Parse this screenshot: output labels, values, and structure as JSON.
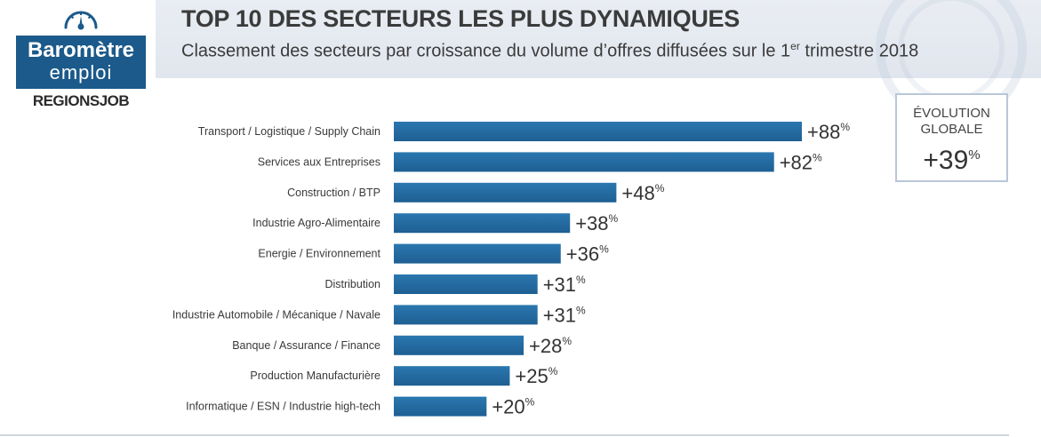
{
  "logo": {
    "line1": "Baromètre",
    "line2": "emploi",
    "brand": "REGIONSJOB"
  },
  "header": {
    "title": "TOP 10 DES SECTEURS LES PLUS DYNAMIQUES",
    "subtitle_pre": "Classement des secteurs par croissance du volume d’offres diffusées sur le 1",
    "subtitle_sup": "er",
    "subtitle_post": " trimestre 2018"
  },
  "global": {
    "line1": "ÉVOLUTION",
    "line2": "GLOBALE",
    "value": "+39",
    "unit": "%"
  },
  "colors": {
    "bar": "#1e5f92",
    "bar_light": "#2b77b0"
  },
  "chart_data": {
    "type": "bar",
    "orientation": "horizontal",
    "categories": [
      "Transport / Logistique / Supply Chain",
      "Services aux Entreprises",
      "Construction / BTP",
      "Industrie Agro-Alimentaire",
      "Energie / Environnement",
      "Distribution",
      "Industrie Automobile / Mécanique / Navale",
      "Banque / Assurance / Finance",
      "Production Manufacturière",
      "Informatique / ESN / Industrie high-tech"
    ],
    "values": [
      88,
      82,
      48,
      38,
      36,
      31,
      31,
      28,
      25,
      20
    ],
    "labels": [
      "+88",
      "+82",
      "+48",
      "+38",
      "+36",
      "+31",
      "+31",
      "+28",
      "+25",
      "+20"
    ],
    "unit": "%",
    "xlim": [
      0,
      88
    ],
    "grid": false,
    "legend": "none"
  }
}
